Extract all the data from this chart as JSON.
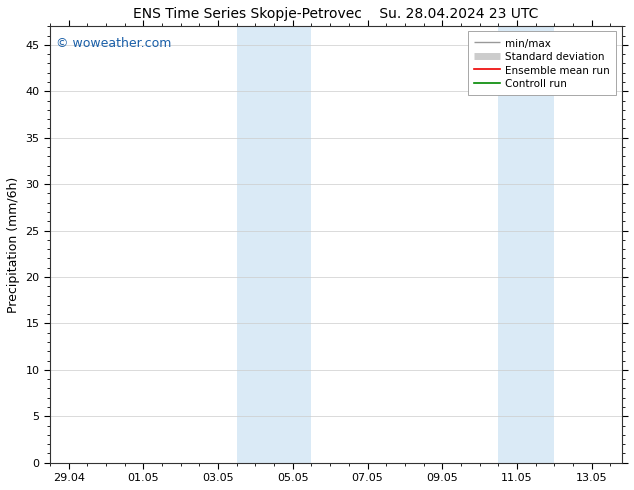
{
  "title_left": "ENS Time Series Skopje-Petrovec",
  "title_right": "Su. 28.04.2024 23 UTC",
  "ylabel": "Precipitation (mm/6h)",
  "watermark": "© woweather.com",
  "watermark_color": "#1a5fa8",
  "xlim": [
    -0.3,
    14.8
  ],
  "ylim": [
    0,
    47
  ],
  "yticks": [
    0,
    5,
    10,
    15,
    20,
    25,
    30,
    35,
    40,
    45
  ],
  "xtick_labels": [
    "29.04",
    "01.05",
    "03.05",
    "05.05",
    "07.05",
    "09.05",
    "11.05",
    "13.05"
  ],
  "xtick_positions": [
    0,
    2,
    4,
    6,
    8,
    10,
    12,
    14
  ],
  "shaded_regions": [
    {
      "start": 4.5,
      "end": 6.5
    },
    {
      "start": 11.5,
      "end": 13.0
    }
  ],
  "shaded_color": "#daeaf6",
  "background_color": "#ffffff",
  "legend_entries": [
    {
      "label": "min/max",
      "color": "#999999",
      "lw": 1.0,
      "style": "minmax"
    },
    {
      "label": "Standard deviation",
      "color": "#cccccc",
      "lw": 5.0,
      "style": "band"
    },
    {
      "label": "Ensemble mean run",
      "color": "#ee0000",
      "lw": 1.2,
      "style": "line"
    },
    {
      "label": "Controll run",
      "color": "#008800",
      "lw": 1.2,
      "style": "line"
    }
  ],
  "title_fontsize": 10,
  "tick_label_fontsize": 8,
  "ylabel_fontsize": 9,
  "watermark_fontsize": 9,
  "legend_fontsize": 7.5
}
